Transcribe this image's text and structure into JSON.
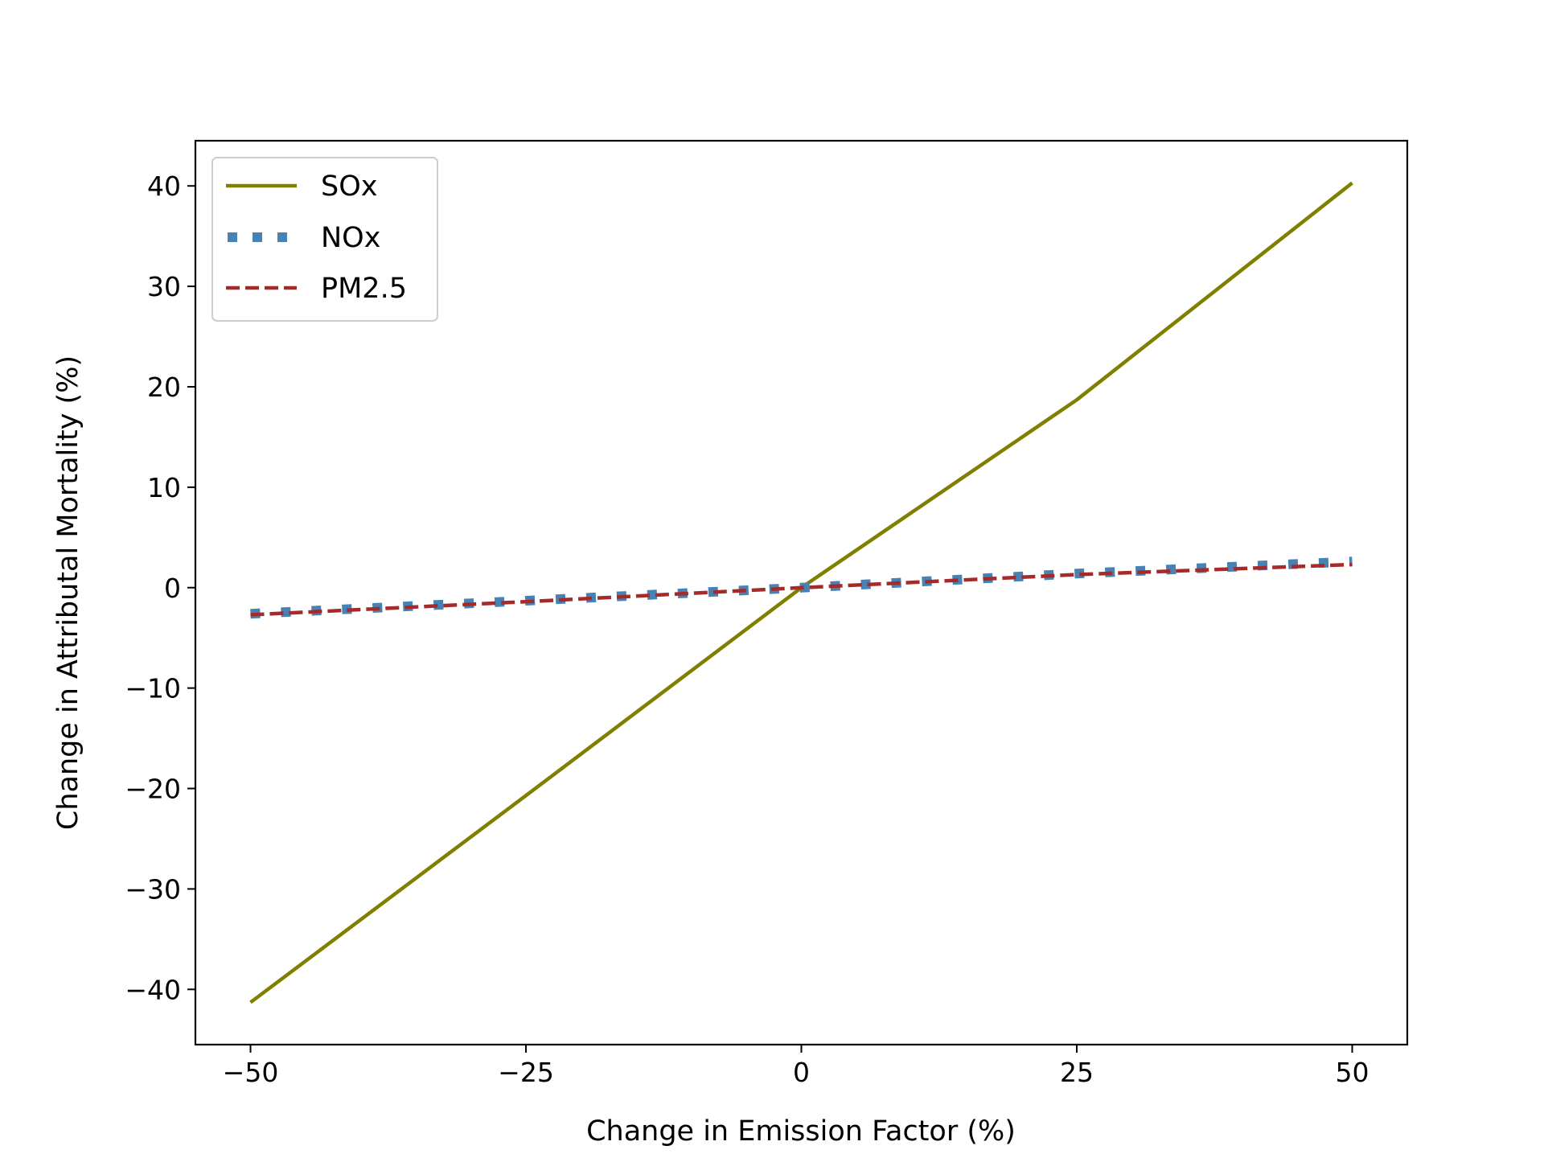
{
  "chart_data": {
    "type": "line",
    "title": "",
    "xlabel": "Change in Emission Factor (%)",
    "ylabel": "Change in Attributal Mortality (%)",
    "xlim": [
      -55,
      55
    ],
    "ylim": [
      -45.5,
      44.5
    ],
    "xticks": [
      -50,
      -25,
      0,
      25,
      50
    ],
    "xtick_labels": [
      "−50",
      "−25",
      "0",
      "25",
      "50"
    ],
    "yticks": [
      -40,
      -30,
      -20,
      -10,
      0,
      10,
      20,
      30,
      40
    ],
    "ytick_labels": [
      "−40",
      "−30",
      "−20",
      "−10",
      "0",
      "10",
      "20",
      "30",
      "40"
    ],
    "grid": false,
    "legend_position": "top-left",
    "series": [
      {
        "name": "SOx",
        "color": "#808000",
        "style": "solid",
        "x": [
          -50,
          -25,
          0,
          25,
          50
        ],
        "y": [
          -41.3,
          -20.7,
          0,
          18.7,
          40.3
        ]
      },
      {
        "name": "NOx",
        "color": "#4682B4",
        "style": "dotted",
        "x": [
          -50,
          -25,
          0,
          25,
          50
        ],
        "y": [
          -2.6,
          -1.3,
          0,
          1.4,
          2.6
        ]
      },
      {
        "name": "PM2.5",
        "color": "#A52A2A",
        "style": "dashed",
        "x": [
          -50,
          -25,
          0,
          25,
          50
        ],
        "y": [
          -2.7,
          -1.4,
          0,
          1.3,
          2.3
        ]
      }
    ]
  }
}
